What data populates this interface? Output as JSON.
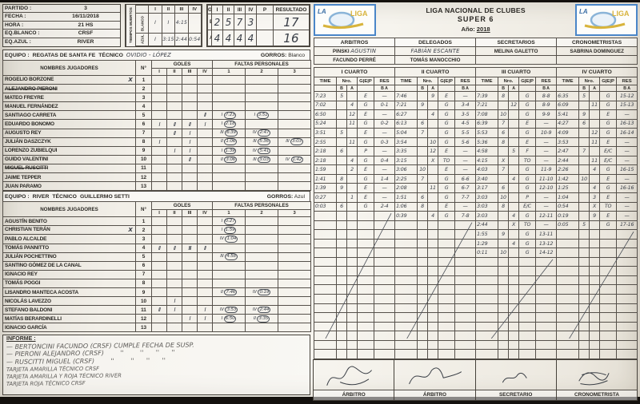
{
  "match_info": {
    "rows": [
      {
        "label": "PARTIDO :",
        "value": "3"
      },
      {
        "label": "FECHA :",
        "value": "16/11/2018"
      },
      {
        "label": "HORA :",
        "value": "21 HS"
      },
      {
        "label": "EQ.BLANCO :",
        "value": "CRSF"
      },
      {
        "label": "EQ.AZUL :",
        "value": "RIVER"
      }
    ]
  },
  "timeouts": {
    "side_label": "TIEMPOS MUERTOS",
    "columns": [
      "I",
      "II",
      "III",
      "IV"
    ],
    "rows": [
      {
        "team": "BLANCO",
        "values": [
          "I",
          "I",
          "4:15",
          ""
        ]
      },
      {
        "team": "AZUL",
        "values": [
          "I",
          "3:15",
          "2:44",
          "0:54"
        ]
      }
    ]
  },
  "goals_summary": {
    "title": "GOLES",
    "columns": [
      "I",
      "II",
      "III",
      "IV",
      "P",
      "RESULTADO"
    ],
    "rows": [
      {
        "team": "BLANCO",
        "values": [
          "2",
          "5",
          "7",
          "3",
          ""
        ],
        "result": "17"
      },
      {
        "team": "AZUL",
        "values": [
          "4",
          "4",
          "4",
          "4",
          ""
        ],
        "result": "16"
      }
    ]
  },
  "league_header": {
    "title": "LIGA NACIONAL DE CLUBES",
    "subtitle": "SUPER 6",
    "year_label": "Año:",
    "year": "2018",
    "logo_text": "LIGA",
    "logo_small": "LA"
  },
  "officials": {
    "headers": [
      "ARBITROS",
      "DELEGADOS",
      "SECRETARIOS",
      "CRONOMETRISTAS"
    ],
    "row1": [
      {
        "printed": "PINSKI",
        "hand": "AGUSTIN"
      },
      {
        "printed": "",
        "hand": "FABIÁN ESCANTE"
      },
      {
        "printed": "MELINA GALETTO",
        "hand": ""
      },
      {
        "printed": "SABRINA DOMINGUEZ",
        "hand": ""
      }
    ],
    "row2": [
      "FACUNDO PERRÉ",
      "TOMÁS MANOCCHIO",
      "",
      ""
    ]
  },
  "team_table_labels": {
    "names": "NOMBRES JUGADORES",
    "num": "N°",
    "goles": "GOLES",
    "faltas": "FALTAS PERSONALES",
    "goles_cols": [
      "I",
      "II",
      "III",
      "IV"
    ],
    "faltas_cols": [
      "1",
      "2",
      "3"
    ],
    "equipo_label": "EQUIPO :",
    "tecnico_label": "TÉCNICO",
    "gorros_label": "GORROS:"
  },
  "team_white": {
    "equipo": "REGATAS DE SANTA FE",
    "tecnico": "OVIDIO - LÓPEZ",
    "tecnico_hand": true,
    "gorros": "Blanco",
    "players": [
      {
        "num": "1",
        "name": "ROGELIO BORZONE",
        "mark": "X",
        "goles": [
          "",
          "",
          "",
          ""
        ],
        "faltas": [
          "",
          "",
          ""
        ]
      },
      {
        "num": "2",
        "name": "ALEJANDRO PIERONI",
        "strike": true,
        "goles": [
          "",
          "",
          "",
          ""
        ],
        "faltas": [
          "",
          "",
          ""
        ]
      },
      {
        "num": "3",
        "name": "MATEO FREYRE",
        "goles": [
          "",
          "",
          "",
          ""
        ],
        "faltas": [
          "",
          "",
          ""
        ]
      },
      {
        "num": "4",
        "name": "MANUEL FERNÁNDEZ",
        "goles": [
          "",
          "",
          "",
          ""
        ],
        "faltas": [
          "",
          "",
          ""
        ]
      },
      {
        "num": "5",
        "name": "SANTIAGO CARRETA",
        "goles": [
          "",
          "",
          "",
          "II"
        ],
        "faltas": [
          "I (7:23)",
          "I (3:51)",
          ""
        ]
      },
      {
        "num": "6",
        "name": "EDUARDO BONOMO",
        "goles": [
          "I",
          "II",
          "II",
          "I"
        ],
        "faltas": [
          "I (2:18)",
          "",
          ""
        ]
      },
      {
        "num": "7",
        "name": "AUGUSTO REY",
        "goles": [
          "",
          "II",
          "I",
          ""
        ],
        "faltas": [
          "III (6:39)",
          "IV (2:47)",
          ""
        ]
      },
      {
        "num": "8",
        "name": "JULIÁN DASZCZYK",
        "goles": [
          "I",
          "",
          "I",
          ""
        ],
        "faltas": [
          "II (1:06)",
          "III (5:36)",
          "III (3:03)"
        ]
      },
      {
        "num": "9",
        "name": "LORENZO ZUBIELQUI",
        "goles": [
          "",
          "I",
          "I",
          ""
        ],
        "faltas": [
          "I (1:39)",
          "IV (5:41)",
          ""
        ]
      },
      {
        "num": "10",
        "name": "GUIDO VALENTINI",
        "goles": [
          "",
          "",
          "II",
          ""
        ],
        "faltas": [
          "II (3:06)",
          "III (3:03)",
          "IV (1:42)"
        ]
      },
      {
        "num": "11",
        "name": "MIGUEL RUSCITTI",
        "strike": true,
        "goles": [
          "",
          "",
          "",
          ""
        ],
        "faltas": [
          "",
          "",
          ""
        ]
      },
      {
        "num": "12",
        "name": "JAIME TEPPER",
        "goles": [
          "",
          "",
          "",
          ""
        ],
        "faltas": [
          "",
          "",
          ""
        ]
      },
      {
        "num": "13",
        "name": "JUAN PARAMO",
        "goles": [
          "",
          "",
          "",
          ""
        ],
        "faltas": [
          "",
          "",
          ""
        ]
      }
    ]
  },
  "team_blue": {
    "equipo": "RIVER",
    "tecnico": "GUILLERMO SETTI",
    "tecnico_hand": false,
    "gorros": "Azul",
    "players": [
      {
        "num": "1",
        "name": "AGUSTÍN BENITO",
        "goles": [
          "",
          "",
          "",
          ""
        ],
        "faltas": [
          "I (0:27)",
          "",
          ""
        ]
      },
      {
        "num": "2",
        "name": "CHRISTIAN TERÁN",
        "mark": "X",
        "goles": [
          "",
          "",
          "",
          ""
        ],
        "faltas": [
          "I (1:59)",
          "",
          ""
        ]
      },
      {
        "num": "3",
        "name": "PABLO ALCALDE",
        "goles": [
          "",
          "",
          "",
          ""
        ],
        "faltas": [
          "IV (1:04)",
          "",
          ""
        ]
      },
      {
        "num": "4",
        "name": "TOMÁS PANNITTO",
        "goles": [
          "II",
          "II",
          "III",
          "II"
        ],
        "faltas": [
          "",
          "",
          ""
        ]
      },
      {
        "num": "5",
        "name": "JULIÁN POCHETTINO",
        "goles": [
          "",
          "",
          "",
          ""
        ],
        "faltas": [
          "III (4:58)",
          "",
          ""
        ]
      },
      {
        "num": "6",
        "name": "SANTINO GÓMEZ DE LA CANAL",
        "goles": [
          "",
          "",
          "",
          ""
        ],
        "faltas": [
          "",
          "",
          ""
        ]
      },
      {
        "num": "7",
        "name": "IGNACIO REY",
        "goles": [
          "",
          "",
          "",
          ""
        ],
        "faltas": [
          "",
          "",
          ""
        ]
      },
      {
        "num": "8",
        "name": "TOMÁS POGGI",
        "goles": [
          "",
          "",
          "",
          ""
        ],
        "faltas": [
          "",
          "",
          ""
        ]
      },
      {
        "num": "9",
        "name": "LISANDRO MANTECA ACOSTA",
        "goles": [
          "",
          "",
          "",
          ""
        ],
        "faltas": [
          "II (7:46)",
          "IV (0:19)",
          ""
        ]
      },
      {
        "num": "10",
        "name": "NICOLÁS LAVEZZO",
        "goles": [
          "",
          "I",
          "",
          ""
        ],
        "faltas": [
          "",
          "",
          ""
        ]
      },
      {
        "num": "11",
        "name": "STEFANO BALDONI",
        "goles": [
          "II",
          "I",
          "",
          "I"
        ],
        "faltas": [
          "IV (3:53)",
          "IV (2:44)",
          ""
        ]
      },
      {
        "num": "12",
        "name": "MATÍAS BERARDINELLI",
        "goles": [
          "",
          "",
          "I",
          "I"
        ],
        "faltas": [
          "I (6:50)",
          "II (3:35)",
          ""
        ]
      },
      {
        "num": "13",
        "name": "IGNACIO GARCÍA",
        "goles": [
          "",
          "",
          "",
          ""
        ],
        "faltas": [
          "",
          "",
          ""
        ]
      }
    ]
  },
  "quarter_log": {
    "headers": {
      "time": "TIME",
      "nro": "Nro.",
      "gep": "G|E|P",
      "res": "RES",
      "b": "B",
      "a": "A"
    },
    "total_rows": 29,
    "quarters": [
      {
        "label": "I CUARTO",
        "rows": [
          [
            "7:23",
            "5",
            "",
            "E",
            "—"
          ],
          [
            "7:02",
            "",
            "4",
            "G",
            "0-1"
          ],
          [
            "6:50",
            "",
            "12",
            "E",
            "—"
          ],
          [
            "5:24",
            "",
            "11",
            "G",
            "0-2"
          ],
          [
            "3:51",
            "5",
            "",
            "E",
            "—"
          ],
          [
            "2:55",
            "",
            "11",
            "G",
            "0-3"
          ],
          [
            "2:18",
            "6",
            "",
            "P",
            "—"
          ],
          [
            "2:18",
            "",
            "4",
            "G",
            "0-4"
          ],
          [
            "1:59",
            "",
            "2",
            "E",
            "—"
          ],
          [
            "1:41",
            "8",
            "",
            "G",
            "1-4"
          ],
          [
            "1:39",
            "9",
            "",
            "E",
            "—"
          ],
          [
            "0:27",
            "",
            "1",
            "E",
            "—"
          ],
          [
            "0:03",
            "6",
            "",
            "G",
            "2-4"
          ]
        ]
      },
      {
        "label": "II CUARTO",
        "rows": [
          [
            "7:46",
            "",
            "9",
            "E",
            "—"
          ],
          [
            "7:21",
            "9",
            "",
            "G",
            "3-4"
          ],
          [
            "6:27",
            "",
            "4",
            "G",
            "3-5"
          ],
          [
            "6:13",
            "6",
            "",
            "G",
            "4-5"
          ],
          [
            "5:04",
            "7",
            "",
            "G",
            "5-5"
          ],
          [
            "3:54",
            "",
            "10",
            "G",
            "5-6"
          ],
          [
            "3:35",
            "",
            "12",
            "E",
            "—"
          ],
          [
            "3:15",
            "",
            "X",
            "TO",
            "—"
          ],
          [
            "3:06",
            "10",
            "",
            "E",
            "—"
          ],
          [
            "2:25",
            "7",
            "",
            "G",
            "6-6"
          ],
          [
            "2:08",
            "",
            "11",
            "G",
            "6-7"
          ],
          [
            "1:51",
            "6",
            "",
            "G",
            "7-7"
          ],
          [
            "1:06",
            "8",
            "",
            "E",
            "—"
          ],
          [
            "0:39",
            "",
            "4",
            "G",
            "7-8"
          ]
        ]
      },
      {
        "label": "III CUARTO",
        "rows": [
          [
            "7:39",
            "8",
            "",
            "G",
            "8-8"
          ],
          [
            "7:21",
            "",
            "12",
            "G",
            "8-9"
          ],
          [
            "7:08",
            "10",
            "",
            "G",
            "9-9"
          ],
          [
            "6:39",
            "7",
            "",
            "E",
            "—"
          ],
          [
            "5:53",
            "6",
            "",
            "G",
            "10-9"
          ],
          [
            "5:36",
            "8",
            "",
            "E",
            "—"
          ],
          [
            "4:58",
            "",
            "5",
            "F",
            "—"
          ],
          [
            "4:15",
            "X",
            "",
            "TO",
            "—"
          ],
          [
            "4:03",
            "7",
            "",
            "G",
            "11-9"
          ],
          [
            "3:40",
            "",
            "4",
            "G",
            "11-10"
          ],
          [
            "3:17",
            "6",
            "",
            "G",
            "12-10"
          ],
          [
            "3:03",
            "10",
            "",
            "P",
            "—"
          ],
          [
            "3:03",
            "8",
            "",
            "E/C",
            "—"
          ],
          [
            "3:03",
            "",
            "4",
            "G",
            "12-11"
          ],
          [
            "2:44",
            "",
            "X",
            "TO",
            "—"
          ],
          [
            "1:55",
            "9",
            "",
            "G",
            "13-11"
          ],
          [
            "1:29",
            "",
            "4",
            "G",
            "13-12"
          ],
          [
            "0:11",
            "10",
            "",
            "G",
            "14-12"
          ]
        ]
      },
      {
        "label": "IV CUARTO",
        "rows": [
          [
            "6:35",
            "5",
            "",
            "G",
            "15-12"
          ],
          [
            "6:09",
            "",
            "11",
            "G",
            "15-13"
          ],
          [
            "5:41",
            "9",
            "",
            "E",
            "—"
          ],
          [
            "4:27",
            "6",
            "",
            "G",
            "16-13"
          ],
          [
            "4:09",
            "",
            "12",
            "G",
            "16-14"
          ],
          [
            "3:53",
            "",
            "11",
            "E",
            "—"
          ],
          [
            "2:47",
            "7",
            "",
            "E/C",
            "—"
          ],
          [
            "2:44",
            "",
            "11",
            "E/C",
            "—"
          ],
          [
            "2:26",
            "",
            "4",
            "G",
            "16-15"
          ],
          [
            "1:42",
            "10",
            "",
            "E",
            "—"
          ],
          [
            "1:25",
            "",
            "4",
            "G",
            "16-16"
          ],
          [
            "1:04",
            "",
            "3",
            "E",
            "—"
          ],
          [
            "0:54",
            "",
            "X",
            "TO",
            "—"
          ],
          [
            "0:19",
            "",
            "9",
            "E",
            "—"
          ],
          [
            "0:05",
            "5",
            "",
            "G",
            "17-16"
          ]
        ]
      }
    ]
  },
  "informe": {
    "label": "INFORME :",
    "lines": [
      "— BERTONCINI FACUNDO (CRSF) CUMPLE FECHA DE SUSP.",
      "— PIERONI ALEJANDRO (CRSF)        ''        ''      ''      ''",
      "— RUSCITTI MIGUEL (CRSF)        ''        ''      ''      ''"
    ],
    "lines_small": [
      "TARJETA AMARILLA TÉCNICO CRSF",
      "TARJETA AMARILLA Y ROJA TÉCNICO RIVER",
      "TARJETA ROJA TÉCNICO CRSF"
    ]
  },
  "signatures": {
    "labels": [
      "ÁRBITRO",
      "ÁRBITRO",
      "SECRETARIO",
      "CRONOMETRISTA"
    ]
  }
}
